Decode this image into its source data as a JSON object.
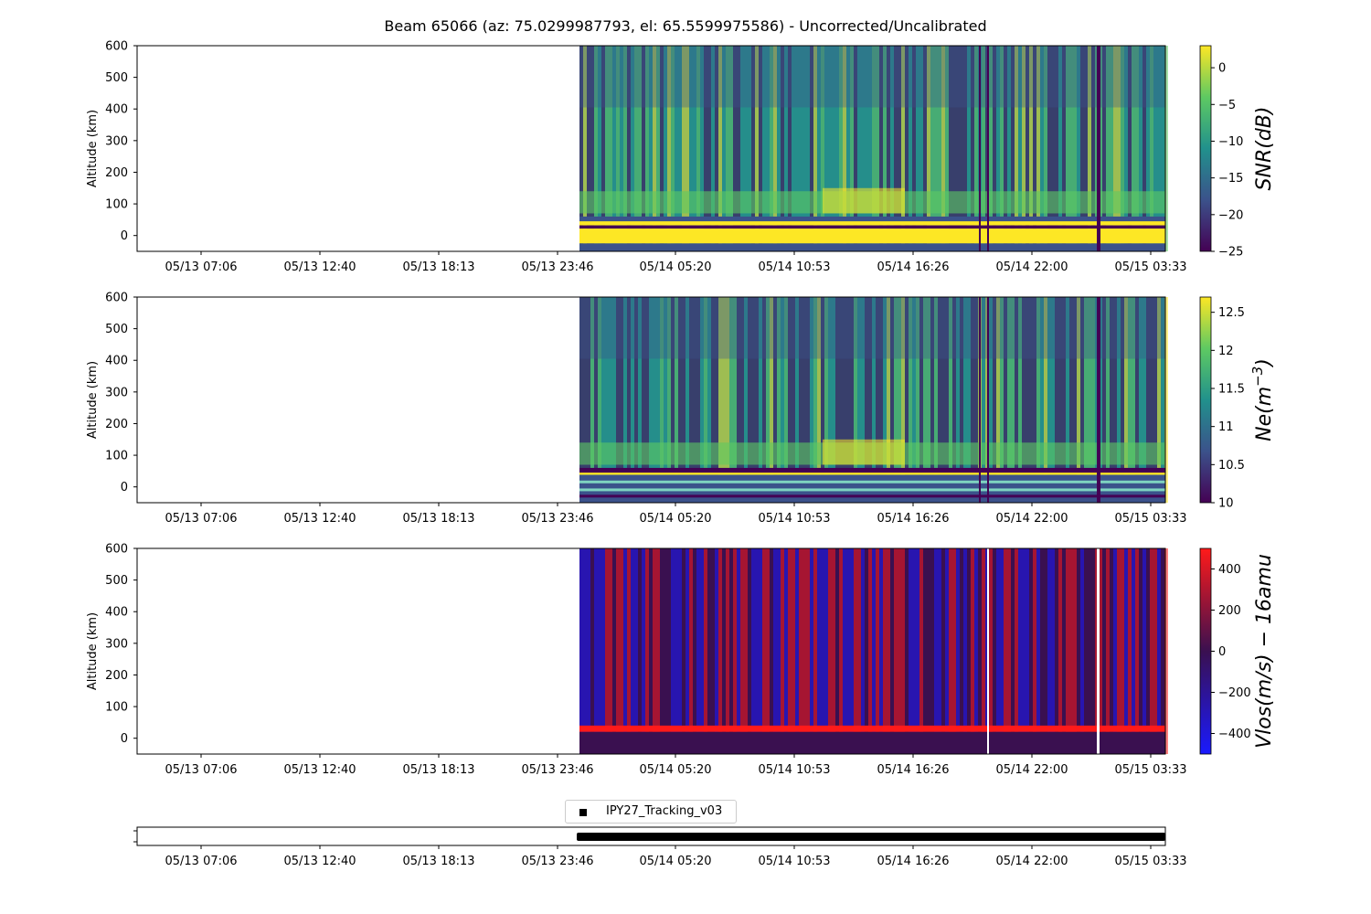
{
  "title": "Beam 65066 (az: 75.0299987793, el: 65.5599975586) - Uncorrected/Uncalibrated",
  "chart_data": [
    {
      "type": "heatmap",
      "ylabel": "Altitude (km)",
      "yticks": [
        0,
        100,
        200,
        300,
        400,
        500,
        600
      ],
      "ylim": [
        -50,
        600
      ],
      "xticks": [
        "05/13 07:06",
        "05/13 12:40",
        "05/13 18:13",
        "05/13 23:46",
        "05/14 05:20",
        "05/14 10:53",
        "05/14 16:26",
        "05/14 22:00",
        "05/15 03:33"
      ],
      "x_range": [
        "05/13 01:33",
        "05/15 03:33"
      ],
      "data_start": "05/14 02:15",
      "colorbar": {
        "label": "SNR(dB)",
        "ticks": [
          0,
          -5,
          -10,
          -15,
          -20,
          -25
        ],
        "range": [
          -25,
          3
        ],
        "colormap": "viridis"
      }
    },
    {
      "type": "heatmap",
      "ylabel": "Altitude (km)",
      "yticks": [
        0,
        100,
        200,
        300,
        400,
        500,
        600
      ],
      "ylim": [
        -50,
        600
      ],
      "xticks": [
        "05/13 07:06",
        "05/13 12:40",
        "05/13 18:13",
        "05/13 23:46",
        "05/14 05:20",
        "05/14 10:53",
        "05/14 16:26",
        "05/14 22:00",
        "05/15 03:33"
      ],
      "x_range": [
        "05/13 01:33",
        "05/15 03:33"
      ],
      "data_start": "05/14 02:15",
      "colorbar": {
        "label": "Ne(m^-3)",
        "label_base": "Ne(m",
        "label_sup": "−3",
        "label_end": ")",
        "ticks": [
          12.5,
          12.0,
          11.5,
          11.0,
          10.5,
          10.0
        ],
        "range": [
          10,
          12.7
        ],
        "colormap": "viridis"
      }
    },
    {
      "type": "heatmap",
      "ylabel": "Altitude (km)",
      "yticks": [
        0,
        100,
        200,
        300,
        400,
        500,
        600
      ],
      "ylim": [
        -50,
        600
      ],
      "xticks": [
        "05/13 07:06",
        "05/13 12:40",
        "05/13 18:13",
        "05/13 23:46",
        "05/14 05:20",
        "05/14 10:53",
        "05/14 16:26",
        "05/14 22:00",
        "05/15 03:33"
      ],
      "x_range": [
        "05/13 01:33",
        "05/15 03:33"
      ],
      "data_start": "05/14 02:15",
      "colorbar": {
        "label": "Vlos(m/s) − 16amu",
        "ticks": [
          400,
          200,
          0,
          -200,
          -400
        ],
        "range": [
          -500,
          500
        ],
        "colormap": "bwr-dark"
      }
    },
    {
      "type": "bar",
      "xticks": [
        "05/13 07:06",
        "05/13 12:40",
        "05/13 18:13",
        "05/13 23:46",
        "05/14 05:20",
        "05/14 10:53",
        "05/14 16:26",
        "05/14 22:00",
        "05/15 03:33"
      ],
      "legend": [
        "IPY27_Tracking_v03"
      ],
      "legend_position": "top-center",
      "interval": [
        "05/14 02:00",
        "05/15 03:33"
      ]
    }
  ],
  "colors": {
    "viridis": [
      "#440154",
      "#3b528b",
      "#21918c",
      "#5ec962",
      "#fde725"
    ],
    "vlos_low": "#1a1aff",
    "vlos_mid": "#3a1050",
    "vlos_high": "#ff1a1a"
  }
}
